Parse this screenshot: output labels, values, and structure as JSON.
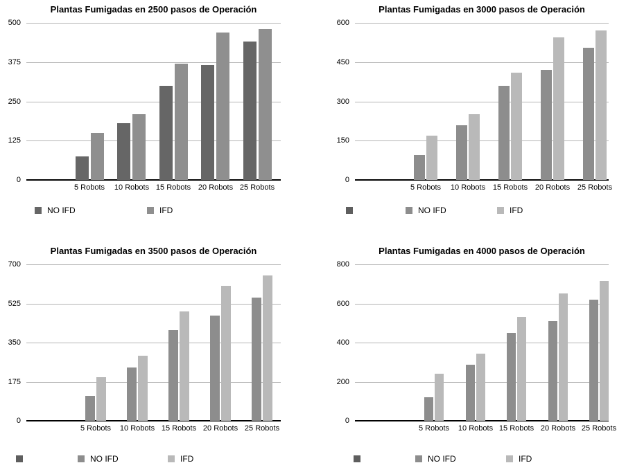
{
  "chart_data": [
    {
      "type": "bar",
      "title": "Plantas Fumigadas en 2500 pasos de Operación",
      "categories": [
        "5 Robots",
        "10 Robots",
        "15 Robots",
        "20 Robots",
        "25 Robots"
      ],
      "series": [
        {
          "name": "NO IFD",
          "color": "#666666",
          "values": [
            75,
            180,
            300,
            365,
            440
          ]
        },
        {
          "name": "IFD",
          "color": "#8f8f8f",
          "values": [
            150,
            210,
            370,
            470,
            480
          ]
        }
      ],
      "ylim": [
        0,
        500
      ],
      "y_ticks": [
        0,
        125,
        250,
        375,
        500
      ],
      "grid": true,
      "legend_position": "bottom",
      "legend": [
        {
          "label": "NO IFD",
          "color": "#666666"
        },
        {
          "label": "IFD",
          "color": "#8f8f8f"
        }
      ]
    },
    {
      "type": "bar",
      "title": "Plantas Fumigadas en 3000 pasos de Operación",
      "categories": [
        "5 Robots",
        "10 Robots",
        "15 Robots",
        "20 Robots",
        "25 Robots"
      ],
      "series": [
        {
          "name": "NO IFD",
          "color": "#8d8d8d",
          "values": [
            95,
            210,
            360,
            420,
            505
          ]
        },
        {
          "name": "IFD",
          "color": "#b9b9b9",
          "values": [
            170,
            250,
            410,
            545,
            570
          ]
        }
      ],
      "ylim": [
        0,
        600
      ],
      "y_ticks": [
        0,
        150,
        300,
        450,
        600
      ],
      "grid": true,
      "legend_position": "bottom",
      "legend": [
        {
          "label": "",
          "color": "#5e5e5e"
        },
        {
          "label": "NO IFD",
          "color": "#8d8d8d"
        },
        {
          "label": "IFD",
          "color": "#b9b9b9"
        }
      ]
    },
    {
      "type": "bar",
      "title": "Plantas Fumigadas en 3500 pasos de Operación",
      "categories": [
        "5 Robots",
        "10 Robots",
        "15 Robots",
        "20 Robots",
        "25 Robots"
      ],
      "series": [
        {
          "name": "NO IFD",
          "color": "#8d8d8d",
          "values": [
            110,
            240,
            405,
            470,
            550
          ]
        },
        {
          "name": "IFD",
          "color": "#b9b9b9",
          "values": [
            195,
            290,
            490,
            605,
            650
          ]
        }
      ],
      "ylim": [
        0,
        700
      ],
      "y_ticks": [
        0,
        175,
        350,
        525,
        700
      ],
      "grid": true,
      "legend_position": "bottom",
      "legend": [
        {
          "label": "",
          "color": "#5e5e5e"
        },
        {
          "label": "NO IFD",
          "color": "#8d8d8d"
        },
        {
          "label": "IFD",
          "color": "#b9b9b9"
        }
      ]
    },
    {
      "type": "bar",
      "title": "Plantas Fumigadas en 4000 pasos de Operación",
      "categories": [
        "5 Robots",
        "10 Robots",
        "15 Robots",
        "20 Robots",
        "25 Robots"
      ],
      "series": [
        {
          "name": "NO IFD",
          "color": "#8d8d8d",
          "values": [
            120,
            285,
            450,
            510,
            620
          ]
        },
        {
          "name": "IFD",
          "color": "#b9b9b9",
          "values": [
            240,
            345,
            530,
            650,
            715
          ]
        }
      ],
      "ylim": [
        0,
        800
      ],
      "y_ticks": [
        0,
        200,
        400,
        600,
        800
      ],
      "grid": true,
      "legend_position": "bottom",
      "legend": [
        {
          "label": "",
          "color": "#5e5e5e"
        },
        {
          "label": "NO IFD",
          "color": "#8d8d8d"
        },
        {
          "label": "IFD",
          "color": "#b9b9b9"
        }
      ]
    }
  ]
}
